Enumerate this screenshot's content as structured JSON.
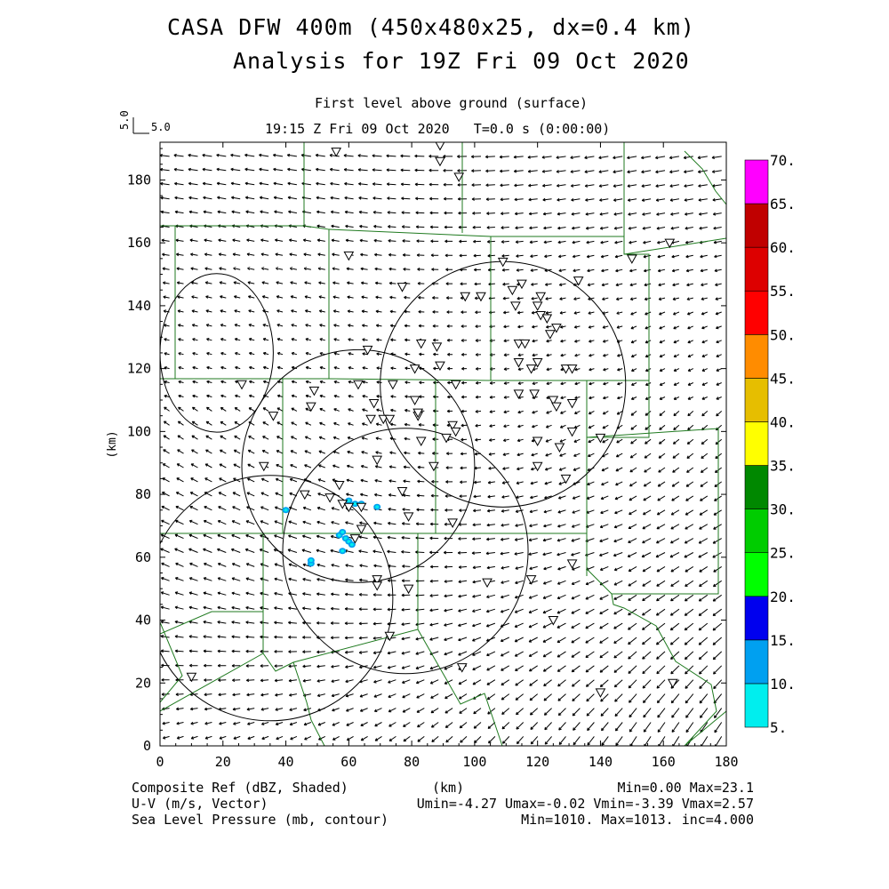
{
  "title": {
    "line1": "CASA DFW 400m (450x480x25, dx=0.4 km)",
    "line2": "Analysis for 19Z Fri 09 Oct 2020"
  },
  "subtitle": {
    "level": "First level above ground (surface)",
    "time": "19:15 Z Fri 09 Oct 2020   T=0.0 s (0:00:00)"
  },
  "vector_scale": {
    "vertical": "5.0",
    "horizontal": "5.0"
  },
  "axes": {
    "xlabel": "(km)",
    "ylabel": "(km)",
    "xticks": [
      0,
      20,
      40,
      60,
      80,
      100,
      120,
      140,
      160,
      180
    ],
    "yticks": [
      0,
      20,
      40,
      60,
      80,
      100,
      120,
      140,
      160,
      180
    ],
    "xlim": [
      0,
      180
    ],
    "ylim": [
      0,
      192
    ]
  },
  "colorbar": {
    "labels": [
      "5.",
      "10.",
      "15.",
      "20.",
      "25.",
      "30.",
      "35.",
      "40.",
      "45.",
      "50.",
      "55.",
      "60.",
      "65.",
      "70."
    ],
    "colors": [
      "#00eeee",
      "#00a0f0",
      "#0000ee",
      "#00ff00",
      "#00cc00",
      "#008800",
      "#ffff00",
      "#e6be00",
      "#ff8c00",
      "#ff0000",
      "#dd0000",
      "#c00000",
      "#ff00ff"
    ]
  },
  "footer": {
    "left1": "Composite Ref (dBZ, Shaded)",
    "center1": "(km)",
    "right1": "Min=0.00 Max=23.1",
    "left2": "U-V (m/s, Vector)",
    "right2": "Umin=-4.27 Umax=-0.02 Vmin=-3.39 Vmax=2.57",
    "left3": "Sea Level Pressure (mb, contour)",
    "right3": "Min=1010. Max=1013. inc=4.000"
  },
  "range_rings": [
    {
      "x": 35,
      "y": 47,
      "r": 39
    },
    {
      "x": 63,
      "y": 89,
      "r": 37
    },
    {
      "x": 78,
      "y": 62,
      "r": 39
    },
    {
      "x": 109,
      "y": 115,
      "r": 39
    },
    {
      "x": 18,
      "y": 125,
      "r": 18
    }
  ],
  "stations": [
    [
      56,
      189
    ],
    [
      89,
      191
    ],
    [
      89,
      186
    ],
    [
      95,
      181
    ],
    [
      60,
      156
    ],
    [
      109,
      154
    ],
    [
      115,
      147
    ],
    [
      112,
      145
    ],
    [
      121,
      143
    ],
    [
      133,
      148
    ],
    [
      97,
      143
    ],
    [
      77,
      146
    ],
    [
      121,
      137
    ],
    [
      123,
      136
    ],
    [
      113,
      140
    ],
    [
      120,
      140
    ],
    [
      124,
      131
    ],
    [
      126,
      133
    ],
    [
      102,
      143
    ],
    [
      66,
      126
    ],
    [
      83,
      128
    ],
    [
      88,
      127
    ],
    [
      114,
      128
    ],
    [
      116,
      128
    ],
    [
      81,
      120
    ],
    [
      89,
      121
    ],
    [
      114,
      122
    ],
    [
      118,
      120
    ],
    [
      120,
      122
    ],
    [
      129,
      120
    ],
    [
      131,
      120
    ],
    [
      26,
      115
    ],
    [
      49,
      113
    ],
    [
      63,
      115
    ],
    [
      68,
      109
    ],
    [
      74,
      115
    ],
    [
      81,
      110
    ],
    [
      94,
      115
    ],
    [
      114,
      112
    ],
    [
      119,
      112
    ],
    [
      125,
      110
    ],
    [
      126,
      108
    ],
    [
      131,
      109
    ],
    [
      36,
      105
    ],
    [
      48,
      108
    ],
    [
      67,
      104
    ],
    [
      71,
      104
    ],
    [
      73,
      104
    ],
    [
      82,
      105
    ],
    [
      82,
      106
    ],
    [
      91,
      98
    ],
    [
      93,
      102
    ],
    [
      94,
      100
    ],
    [
      140,
      98
    ],
    [
      120,
      97
    ],
    [
      127,
      95
    ],
    [
      131,
      100
    ],
    [
      33,
      89
    ],
    [
      69,
      91
    ],
    [
      83,
      97
    ],
    [
      87,
      89
    ],
    [
      120,
      89
    ],
    [
      129,
      85
    ],
    [
      46,
      80
    ],
    [
      54,
      79
    ],
    [
      57,
      83
    ],
    [
      58,
      77
    ],
    [
      64,
      76
    ],
    [
      60,
      76
    ],
    [
      77,
      81
    ],
    [
      79,
      73
    ],
    [
      93,
      71
    ],
    [
      64,
      69
    ],
    [
      62,
      66
    ],
    [
      131,
      58
    ],
    [
      104,
      52
    ],
    [
      118,
      53
    ],
    [
      69,
      53
    ],
    [
      69,
      51
    ],
    [
      79,
      50
    ],
    [
      125,
      40
    ],
    [
      73,
      35
    ],
    [
      96,
      25
    ],
    [
      10,
      22
    ],
    [
      140,
      17
    ],
    [
      163,
      20
    ],
    [
      162,
      160
    ],
    [
      150,
      155
    ]
  ],
  "echoes": [
    [
      40,
      75
    ],
    [
      48,
      58
    ],
    [
      48,
      59
    ],
    [
      57,
      67
    ],
    [
      58,
      68
    ],
    [
      59,
      66
    ],
    [
      60,
      65
    ],
    [
      61,
      64
    ],
    [
      60,
      78
    ],
    [
      62,
      77
    ],
    [
      64,
      77
    ],
    [
      69,
      76
    ],
    [
      58,
      62
    ]
  ]
}
